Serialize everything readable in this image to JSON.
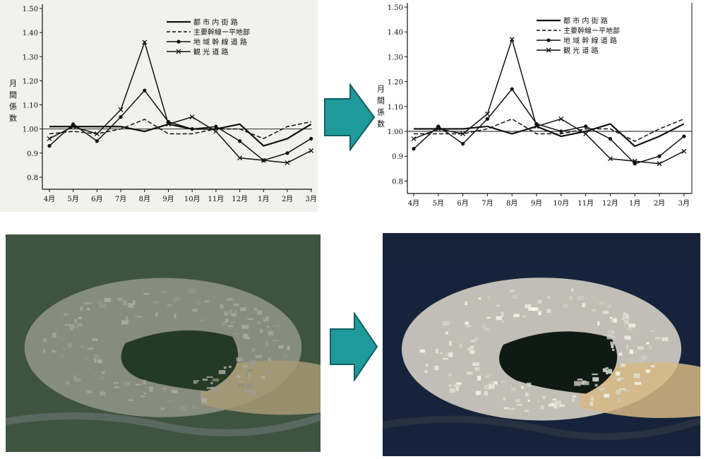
{
  "colors": {
    "arrow": "#1f9a9a",
    "arrow_edge": "#0f5f60",
    "ink": "#111111"
  },
  "chart_data": [
    {
      "type": "line",
      "panel": "left",
      "x": [
        "4月",
        "5月",
        "6月",
        "7月",
        "8月",
        "9月",
        "10月",
        "11月",
        "12月",
        "1月",
        "2月",
        "3月"
      ],
      "ylabel": "月 間 係 数",
      "yticks": [
        "1.50",
        "1.40",
        "1.30",
        "1.20",
        "1.10",
        "1.00",
        "0.9",
        "0.8"
      ],
      "ylim": [
        0.75,
        1.5
      ],
      "reference_line": 1.0,
      "legend_position": "top-right",
      "series": [
        {
          "name": "都 市 内 街 路",
          "style": "solid-bold",
          "marker": "none",
          "values": [
            1.01,
            1.01,
            1.01,
            1.01,
            0.99,
            1.02,
            1.0,
            1.0,
            1.02,
            0.93,
            0.96,
            1.02
          ]
        },
        {
          "name": "主要幹線ー平地部",
          "style": "dashed",
          "marker": "none",
          "values": [
            0.98,
            0.99,
            0.98,
            1.0,
            1.04,
            0.98,
            0.98,
            1.0,
            1.0,
            0.96,
            1.01,
            1.03
          ]
        },
        {
          "name": "地 域 幹 線 道 路",
          "style": "solid",
          "marker": "dot",
          "values": [
            0.93,
            1.02,
            0.95,
            1.05,
            1.16,
            1.03,
            1.0,
            1.01,
            0.95,
            0.87,
            0.9,
            0.96
          ]
        },
        {
          "name": "観 光 道 路",
          "style": "solid",
          "marker": "x",
          "values": [
            0.96,
            1.01,
            0.98,
            1.08,
            1.36,
            1.02,
            1.05,
            0.99,
            0.88,
            0.87,
            0.86,
            0.91
          ]
        }
      ]
    },
    {
      "type": "line",
      "panel": "right",
      "x": [
        "4月",
        "5月",
        "6月",
        "7月",
        "8月",
        "9月",
        "10月",
        "11月",
        "12月",
        "1月",
        "2月",
        "3月"
      ],
      "ylabel": "月 間 係 数",
      "yticks": [
        "1.50",
        "1.40",
        "1.30",
        "1.20",
        "1.10",
        "1.00",
        "0.9",
        "0.8"
      ],
      "ylim": [
        0.75,
        1.5
      ],
      "reference_line": 1.0,
      "legend_position": "top-right",
      "series": [
        {
          "name": "都 市 内 街 路",
          "style": "solid-bold",
          "marker": "none",
          "values": [
            1.01,
            1.01,
            1.01,
            1.02,
            0.99,
            1.02,
            0.98,
            1.0,
            1.03,
            0.94,
            0.98,
            1.03
          ]
        },
        {
          "name": "主要幹線ー平地部",
          "style": "dashed",
          "marker": "none",
          "values": [
            0.99,
            0.99,
            0.99,
            1.01,
            1.05,
            0.99,
            0.99,
            1.01,
            1.01,
            0.96,
            1.01,
            1.05
          ]
        },
        {
          "name": "地 域 幹 線 道 路",
          "style": "solid",
          "marker": "dot",
          "values": [
            0.93,
            1.02,
            0.95,
            1.05,
            1.17,
            1.03,
            1.0,
            1.02,
            0.97,
            0.87,
            0.9,
            0.98
          ]
        },
        {
          "name": "観 光 道 路",
          "style": "solid",
          "marker": "x",
          "values": [
            0.97,
            1.01,
            0.99,
            1.07,
            1.37,
            1.02,
            1.05,
            0.99,
            0.89,
            0.88,
            0.87,
            0.92
          ]
        }
      ]
    }
  ],
  "photos": [
    {
      "name": "aerial-photo-original",
      "tone": "faded",
      "colors": {
        "sky_forest": "#3f5440",
        "city": "#8a8f84",
        "hill": "#243a26",
        "field": "#a89a74",
        "river": "#5d6a66"
      }
    },
    {
      "name": "aerial-photo-corrected",
      "tone": "enhanced",
      "colors": {
        "sky_forest": "#16233a",
        "city": "#c9c7bd",
        "hill": "#101a14",
        "field": "#d6b984",
        "river": "#2a3340"
      }
    }
  ]
}
